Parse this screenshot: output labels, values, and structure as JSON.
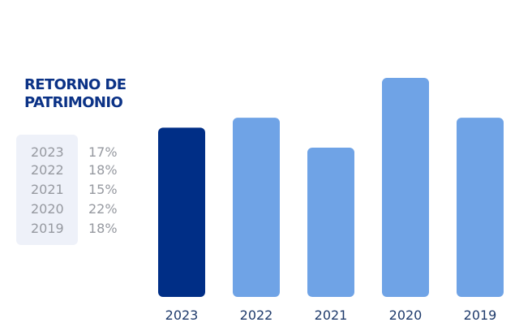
{
  "colors": {
    "title": "#0b3286",
    "highlight_bar": "#002e86",
    "bar": "#6fa3e6",
    "legend_bg": "#eef1f9",
    "legend_text": "#9699a0",
    "tick_text": "#1e3a6b"
  },
  "chart_data": {
    "type": "bar",
    "title_line1": "RETORNO DE",
    "title_line2": "PATRIMONIO",
    "categories": [
      "2023",
      "2022",
      "2021",
      "2020",
      "2019"
    ],
    "values": [
      17,
      18,
      15,
      22,
      18
    ],
    "highlight": "2023",
    "legend": [
      {
        "year": "2023",
        "value": "17%"
      },
      {
        "year": "2022",
        "value": "18%"
      },
      {
        "year": "2021",
        "value": "15%"
      },
      {
        "year": "2020",
        "value": "22%"
      },
      {
        "year": "2019",
        "value": "18%"
      }
    ],
    "xlabel": "",
    "ylabel": "",
    "grid": false
  }
}
